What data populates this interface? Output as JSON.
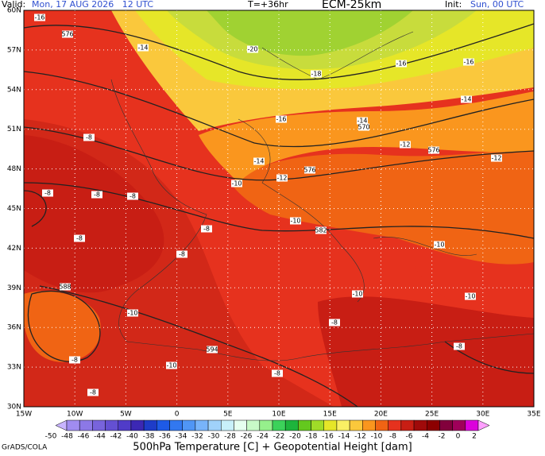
{
  "header": {
    "valid_label": "Valid:",
    "valid_time": "Mon, 17 AUG 2026   12 UTC",
    "lead": "T=+36hr",
    "model": "ECM-25km",
    "init_label": "Init:",
    "init_time": "Sun, 00 UTC"
  },
  "map": {
    "lat_labels": [
      "60N",
      "57N",
      "54N",
      "51N",
      "48N",
      "45N",
      "42N",
      "39N",
      "36N",
      "33N",
      "30N"
    ],
    "lon_labels": [
      "15W",
      "10W",
      "5W",
      "0",
      "5E",
      "10E",
      "15E",
      "20E",
      "25E",
      "30E",
      "35E"
    ],
    "contour_labels": [
      "-16",
      "576",
      "-14",
      "-20",
      "-18",
      "-16",
      "-16",
      "-14",
      "-16",
      "-14",
      "570",
      "-12",
      "576",
      "-12",
      "-8",
      "-14",
      "-12",
      "576",
      "-10",
      "-8",
      "-8",
      "-8",
      "-10",
      "582",
      "-8",
      "-8",
      "-10",
      "-8",
      "588",
      "-10",
      "-10",
      "-10",
      "-8",
      "-8",
      "-8",
      "594",
      "-10",
      "-8",
      "-8"
    ]
  },
  "colorbar": {
    "labels": [
      -50,
      -48,
      -46,
      -44,
      -42,
      -40,
      -38,
      -36,
      -34,
      -32,
      -30,
      -28,
      -26,
      -24,
      -22,
      -20,
      -18,
      -16,
      -14,
      -12,
      -10,
      -8,
      -6,
      -4,
      -2,
      0,
      2
    ],
    "colors": [
      "#c8b4ff",
      "#a08cf0",
      "#8c78e6",
      "#7864dc",
      "#6450d2",
      "#503cc8",
      "#3c28b4",
      "#1e3cc8",
      "#1e5ae6",
      "#3278f0",
      "#5096f5",
      "#78b4fa",
      "#a0d2fa",
      "#c8f0fa",
      "#e6fff0",
      "#c8fac8",
      "#96f08c",
      "#3cd25a",
      "#1eb43c",
      "#64c81e",
      "#a0dc28",
      "#e6e628",
      "#faf064",
      "#fac83c",
      "#fa961e",
      "#f06414",
      "#e6321e",
      "#c81e14",
      "#a00a0a",
      "#8c0000",
      "#82003c",
      "#a0005a",
      "#dc00dc",
      "#ffa0ff"
    ]
  },
  "footer": {
    "title": "500hPa Temperature [C] + Geopotential Height [dam]",
    "credit": "GrADS/COLA"
  }
}
